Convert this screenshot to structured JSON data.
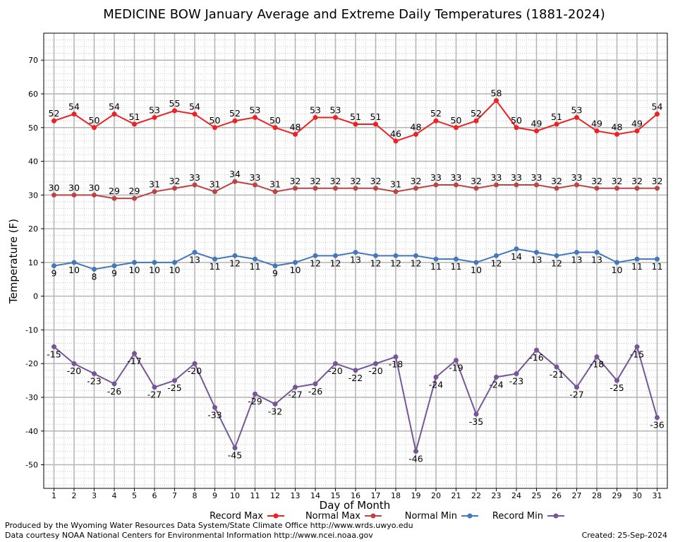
{
  "chart_data": {
    "type": "line",
    "title": "MEDICINE BOW January Average and Extreme Daily Temperatures (1881-2024)",
    "xlabel": "Day of Month",
    "ylabel": "Temperature (F)",
    "ylim": [
      -57,
      78
    ],
    "yticks": [
      70,
      60,
      50,
      40,
      30,
      20,
      10,
      0,
      -10,
      -20,
      -30,
      -40,
      -50
    ],
    "grid": true,
    "legend_position": "bottom",
    "categories": [
      "1",
      "2",
      "3",
      "4",
      "5",
      "6",
      "7",
      "8",
      "9",
      "10",
      "11",
      "12",
      "13",
      "14",
      "15",
      "16",
      "17",
      "18",
      "19",
      "20",
      "21",
      "22",
      "23",
      "24",
      "25",
      "26",
      "27",
      "28",
      "29",
      "30",
      "31"
    ],
    "series": [
      {
        "name": "Record Max",
        "color": "#ee2222",
        "label_pos": "above",
        "values": [
          52,
          54,
          50,
          54,
          51,
          53,
          55,
          54,
          50,
          52,
          53,
          50,
          48,
          53,
          53,
          51,
          51,
          46,
          48,
          52,
          50,
          52,
          58,
          50,
          49,
          51,
          53,
          49,
          48,
          49,
          54
        ]
      },
      {
        "name": "Normal Max",
        "color": "#bb4444",
        "label_pos": "above",
        "values": [
          30,
          30,
          30,
          29,
          29,
          31,
          32,
          33,
          31,
          34,
          33,
          31,
          32,
          32,
          32,
          32,
          32,
          31,
          32,
          33,
          33,
          32,
          33,
          33,
          33,
          32,
          33,
          32,
          32,
          32,
          32
        ]
      },
      {
        "name": "Normal Min",
        "color": "#4477bb",
        "label_pos": "below",
        "values": [
          9,
          10,
          8,
          9,
          10,
          10,
          10,
          13,
          11,
          12,
          11,
          9,
          10,
          12,
          12,
          13,
          12,
          12,
          12,
          11,
          11,
          10,
          12,
          14,
          13,
          12,
          13,
          13,
          10,
          11,
          11
        ]
      },
      {
        "name": "Record Min",
        "color": "#775599",
        "label_pos": "below",
        "values": [
          -15,
          -20,
          -23,
          -26,
          -17,
          -27,
          -25,
          -20,
          -33,
          -45,
          -29,
          -32,
          -27,
          -26,
          -20,
          -22,
          -20,
          -18,
          -46,
          -24,
          -19,
          -35,
          -24,
          -23,
          -16,
          -21,
          -27,
          -18,
          -25,
          -15,
          -36
        ]
      }
    ]
  },
  "footer": {
    "line1": "Produced by the Wyoming Water Resources Data System/State Climate Office http://www.wrds.uwyo.edu",
    "line2": "Data courtesy NOAA National Centers for Environmental Information http://www.ncei.noaa.gov",
    "created": "Created:  25-Sep-2024"
  }
}
